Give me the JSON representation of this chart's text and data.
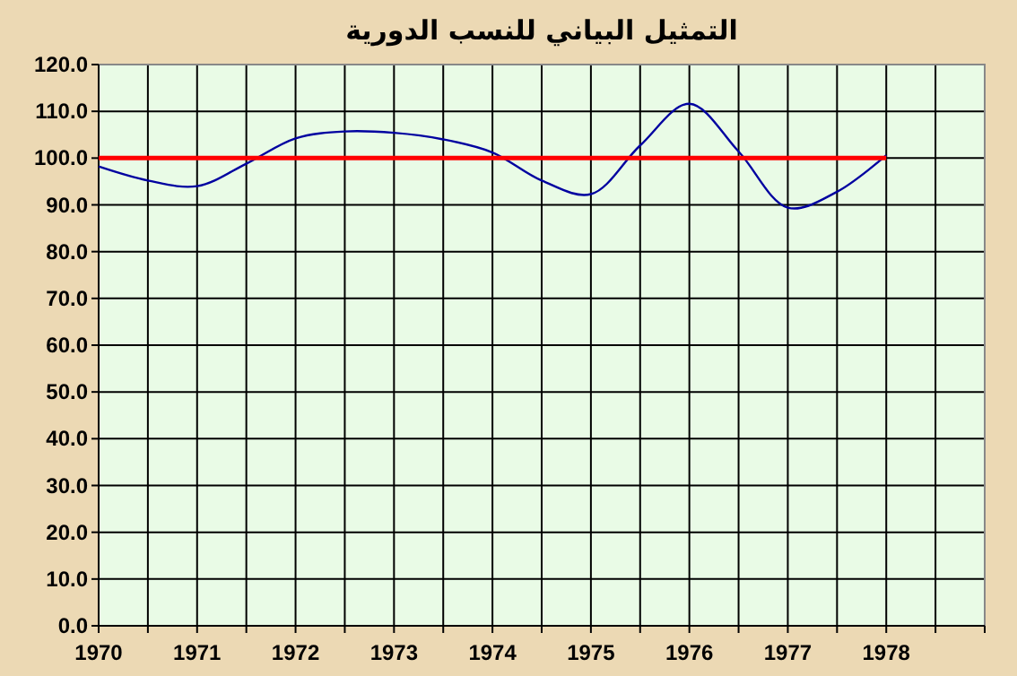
{
  "chart_data": {
    "type": "line",
    "title": "التمثيل البياني للنسب الدورية",
    "xlim": [
      1970,
      1979
    ],
    "xticks": [
      1970,
      {
        "value": 1970.5,
        "label": null
      },
      1971,
      {
        "value": 1971.5,
        "label": null
      },
      1972,
      {
        "value": 1972.5,
        "label": null
      },
      1973,
      {
        "value": 1973.5,
        "label": null
      },
      1974,
      {
        "value": 1974.5,
        "label": null
      },
      1975,
      {
        "value": 1975.5,
        "label": null
      },
      1976,
      {
        "value": 1976.5,
        "label": null
      },
      1977,
      {
        "value": 1977.5,
        "label": null
      },
      1978,
      {
        "value": 1978.5,
        "label": null
      },
      {
        "value": 1979,
        "label": null
      }
    ],
    "ylim": [
      0,
      120
    ],
    "yticks": [
      {
        "value": 0,
        "label": "0.0"
      },
      {
        "value": 10,
        "label": "10.0"
      },
      {
        "value": 20,
        "label": "20.0"
      },
      {
        "value": 30,
        "label": "30.0"
      },
      {
        "value": 40,
        "label": "40.0"
      },
      {
        "value": 50,
        "label": "50.0"
      },
      {
        "value": 60,
        "label": "60.0"
      },
      {
        "value": 70,
        "label": "70.0"
      },
      {
        "value": 80,
        "label": "80.0"
      },
      {
        "value": 90,
        "label": "90.0"
      },
      {
        "value": 100,
        "label": "100.0"
      },
      {
        "value": 110,
        "label": "110.0"
      },
      {
        "value": 120,
        "label": "120.0"
      }
    ],
    "grid": true,
    "marker": "none",
    "line_style": "solid",
    "series": [
      {
        "color": "#0000a0",
        "x": [
          1970,
          1970.5,
          1971,
          1971.5,
          1972,
          1972.5,
          1973,
          1973.5,
          1974,
          1974.5,
          1975,
          1975.5,
          1976,
          1976.5,
          1977,
          1977.5,
          1978
        ],
        "values": [
          98.2,
          95.2,
          94.0,
          98.8,
          104.2,
          105.7,
          105.4,
          104.0,
          101.2,
          95.2,
          92.3,
          102.7,
          111.6,
          101.4,
          89.4,
          92.8,
          100.6
        ]
      },
      {
        "color": "#ff0000",
        "x": [
          1970,
          1978
        ],
        "values": [
          100,
          100
        ]
      }
    ]
  }
}
